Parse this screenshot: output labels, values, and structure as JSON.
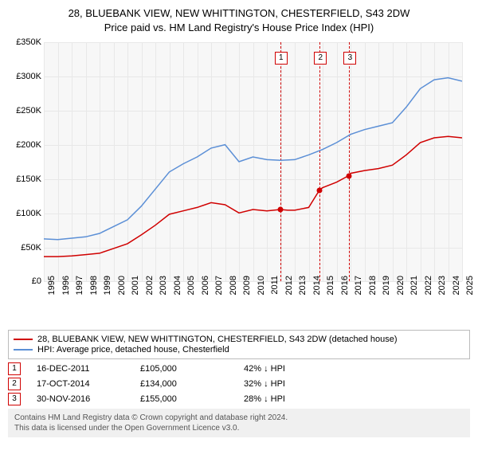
{
  "title": {
    "line1": "28, BLUEBANK VIEW, NEW WHITTINGTON, CHESTERFIELD, S43 2DW",
    "line2": "Price paid vs. HM Land Registry's House Price Index (HPI)"
  },
  "chart": {
    "type": "line",
    "background_color": "#f7f7f7",
    "grid_color": "#e8e8e8",
    "ylim": [
      0,
      350000
    ],
    "yticks": [
      0,
      50000,
      100000,
      150000,
      200000,
      250000,
      300000,
      350000
    ],
    "ytick_labels": [
      "£0",
      "£50K",
      "£100K",
      "£150K",
      "£200K",
      "£250K",
      "£300K",
      "£350K"
    ],
    "xlim": [
      1995,
      2025
    ],
    "xticks": [
      1995,
      1996,
      1997,
      1998,
      1999,
      2000,
      2001,
      2002,
      2003,
      2004,
      2005,
      2006,
      2007,
      2008,
      2009,
      2010,
      2011,
      2012,
      2013,
      2014,
      2015,
      2016,
      2017,
      2018,
      2019,
      2020,
      2021,
      2022,
      2023,
      2024,
      2025
    ],
    "series_red": {
      "label": "28, BLUEBANK VIEW, NEW WHITTINGTON, CHESTERFIELD, S43 2DW (detached house)",
      "color": "#d00000",
      "line_width": 1.5,
      "data": [
        [
          1995,
          36000
        ],
        [
          1996,
          36000
        ],
        [
          1997,
          37000
        ],
        [
          1998,
          39000
        ],
        [
          1999,
          41000
        ],
        [
          2000,
          48000
        ],
        [
          2001,
          55000
        ],
        [
          2002,
          68000
        ],
        [
          2003,
          82000
        ],
        [
          2004,
          98000
        ],
        [
          2005,
          103000
        ],
        [
          2006,
          108000
        ],
        [
          2007,
          115000
        ],
        [
          2008,
          112000
        ],
        [
          2009,
          100000
        ],
        [
          2010,
          105000
        ],
        [
          2011,
          103000
        ],
        [
          2011.96,
          105000
        ],
        [
          2012.5,
          104000
        ],
        [
          2013,
          104000
        ],
        [
          2014,
          108000
        ],
        [
          2014.79,
          134000
        ],
        [
          2015,
          137000
        ],
        [
          2016,
          145000
        ],
        [
          2016.91,
          155000
        ],
        [
          2017,
          158000
        ],
        [
          2018,
          162000
        ],
        [
          2019,
          165000
        ],
        [
          2020,
          170000
        ],
        [
          2021,
          185000
        ],
        [
          2022,
          203000
        ],
        [
          2023,
          210000
        ],
        [
          2024,
          212000
        ],
        [
          2025,
          210000
        ]
      ]
    },
    "series_blue": {
      "label": "HPI: Average price, detached house, Chesterfield",
      "color": "#5b8fd6",
      "line_width": 1.5,
      "data": [
        [
          1995,
          62000
        ],
        [
          1996,
          61000
        ],
        [
          1997,
          63000
        ],
        [
          1998,
          65000
        ],
        [
          1999,
          70000
        ],
        [
          2000,
          80000
        ],
        [
          2001,
          90000
        ],
        [
          2002,
          110000
        ],
        [
          2003,
          135000
        ],
        [
          2004,
          160000
        ],
        [
          2005,
          172000
        ],
        [
          2006,
          182000
        ],
        [
          2007,
          195000
        ],
        [
          2008,
          200000
        ],
        [
          2009,
          175000
        ],
        [
          2010,
          182000
        ],
        [
          2011,
          178000
        ],
        [
          2012,
          177000
        ],
        [
          2013,
          178000
        ],
        [
          2014,
          185000
        ],
        [
          2015,
          193000
        ],
        [
          2016,
          203000
        ],
        [
          2017,
          215000
        ],
        [
          2018,
          222000
        ],
        [
          2019,
          227000
        ],
        [
          2020,
          232000
        ],
        [
          2021,
          255000
        ],
        [
          2022,
          282000
        ],
        [
          2023,
          295000
        ],
        [
          2024,
          298000
        ],
        [
          2025,
          293000
        ]
      ]
    },
    "sale_markers": [
      {
        "num": "1",
        "year": 2011.96,
        "value": 105000
      },
      {
        "num": "2",
        "year": 2014.79,
        "value": 134000
      },
      {
        "num": "3",
        "year": 2016.91,
        "value": 155000
      }
    ],
    "marker_border_color": "#d00000"
  },
  "legend": {
    "row1_color": "#d00000",
    "row1_text": "28, BLUEBANK VIEW, NEW WHITTINGTON, CHESTERFIELD, S43 2DW (detached house)",
    "row2_color": "#5b8fd6",
    "row2_text": "HPI: Average price, detached house, Chesterfield"
  },
  "sales": [
    {
      "num": "1",
      "date": "16-DEC-2011",
      "price": "£105,000",
      "diff": "42% ↓ HPI"
    },
    {
      "num": "2",
      "date": "17-OCT-2014",
      "price": "£134,000",
      "diff": "32% ↓ HPI"
    },
    {
      "num": "3",
      "date": "30-NOV-2016",
      "price": "£155,000",
      "diff": "28% ↓ HPI"
    }
  ],
  "footer": {
    "line1": "Contains HM Land Registry data © Crown copyright and database right 2024.",
    "line2": "This data is licensed under the Open Government Licence v3.0."
  }
}
